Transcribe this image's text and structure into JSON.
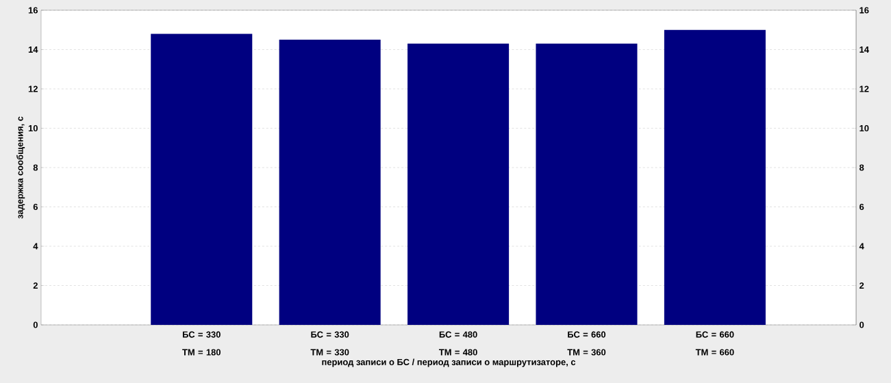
{
  "chart_data": {
    "type": "bar",
    "xlabel": "период записи о БС / период записи о маршрутизаторе, с",
    "ylabel": "задержка сообщения, с",
    "categories": [
      "БС = 330 ТМ = 180",
      "БС = 330 ТМ = 330",
      "БС = 480 ТМ = 480",
      "БС = 660 ТМ = 360",
      "БС = 660 ТМ = 660"
    ],
    "values": [
      14.8,
      14.5,
      14.3,
      14.3,
      15.0
    ],
    "color": "#000080",
    "ylim": [
      0,
      16
    ],
    "yticks": [
      0,
      2,
      4,
      6,
      8,
      10,
      12,
      14,
      16
    ],
    "y2lim": [
      0,
      16
    ],
    "y2ticks": [
      0,
      2,
      4,
      6,
      8,
      10,
      12,
      14,
      16
    ],
    "grid": "y"
  }
}
